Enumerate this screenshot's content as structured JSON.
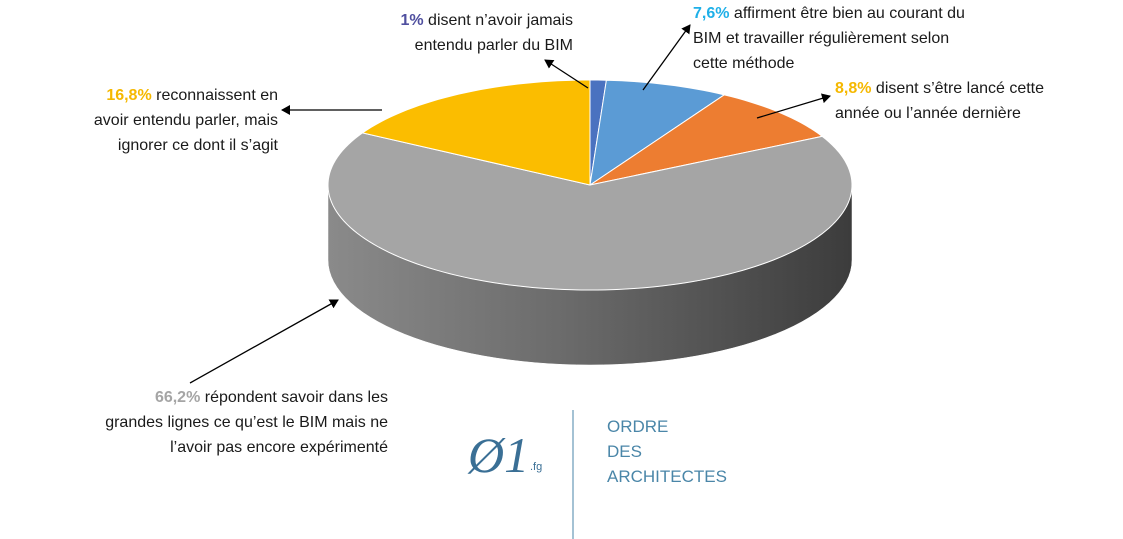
{
  "chart_data": {
    "type": "pie",
    "categories": [
      [
        "disent n’avoir jamais",
        "entendu parler du BIM"
      ],
      [
        "affirment être bien au courant du",
        "BIM et travailler régulièrement selon",
        "cette méthode"
      ],
      [
        "disent s’être lancé cette",
        "année ou l’année dernière"
      ],
      [
        "répondent savoir dans les",
        "grandes lignes ce qu’est le BIM mais ne",
        "l’avoir pas encore expérimenté"
      ],
      [
        "reconnaissent en",
        "avoir entendu parler, mais",
        "ignorer ce dont il s’agit"
      ]
    ],
    "values": [
      1,
      7.6,
      8.8,
      66.2,
      16.8
    ],
    "value_labels": [
      "1%",
      "7,6%",
      "8,8%",
      "66,2%",
      "16,8%"
    ],
    "colors": [
      "#4a72c0",
      "#5b9bd5",
      "#ed7d31",
      "#a5a5a5",
      "#fbbd00"
    ],
    "label_colors": [
      "#4f4f9f",
      "#1fb0e8",
      "#f5b800",
      "#a5a5a5",
      "#f5b800"
    ]
  },
  "logo": {
    "symbol": "Ø1",
    "suffix": ".fg",
    "lines": [
      "ORDRE",
      "DES",
      "ARCHITECTES"
    ]
  }
}
